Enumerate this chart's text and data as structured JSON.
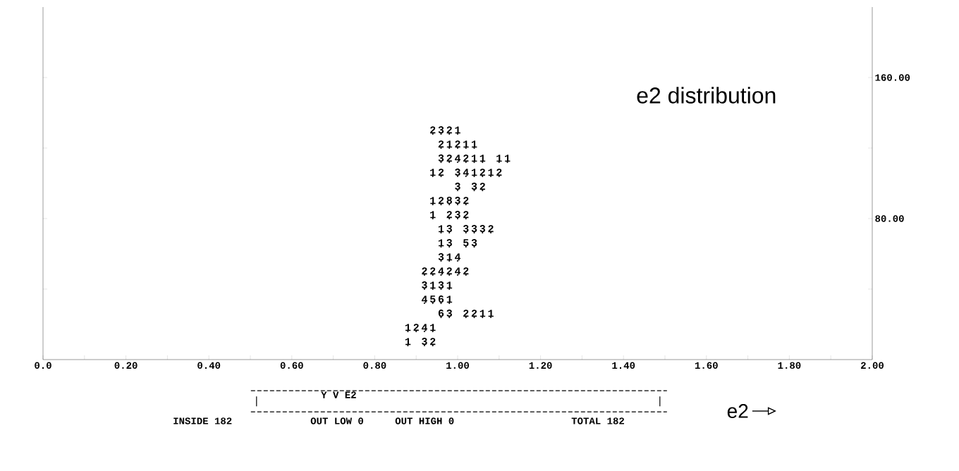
{
  "chart_data": {
    "type": "scatter",
    "title": "e2 distribution",
    "xlabel": "e2",
    "color": "#000000",
    "x": [
      0.94,
      0.96,
      0.98,
      1.0,
      0.96,
      0.98,
      1.0,
      1.02,
      1.04,
      0.96,
      0.98,
      1.0,
      1.02,
      1.04,
      1.06,
      1.1,
      1.12,
      0.94,
      0.96,
      1.0,
      1.02,
      1.04,
      1.06,
      1.08,
      1.1,
      1.0,
      1.04,
      1.06,
      0.94,
      0.96,
      0.98,
      1.0,
      1.02,
      0.94,
      0.98,
      1.0,
      1.02,
      0.96,
      0.98,
      1.02,
      1.04,
      1.06,
      1.08,
      0.96,
      0.98,
      1.02,
      1.04,
      0.96,
      0.98,
      1.0,
      0.92,
      0.94,
      0.96,
      0.98,
      1.0,
      1.02,
      0.92,
      0.94,
      0.96,
      0.98,
      0.92,
      0.94,
      0.96,
      0.98,
      0.96,
      0.98,
      1.02,
      1.04,
      1.06,
      1.08,
      0.88,
      0.9,
      0.92,
      0.94,
      0.88,
      0.92,
      0.94
    ],
    "values": [
      128,
      128,
      128,
      128,
      120,
      120,
      120,
      120,
      120,
      112,
      112,
      112,
      112,
      112,
      112,
      112,
      112,
      104,
      104,
      104,
      104,
      104,
      104,
      104,
      104,
      96,
      96,
      96,
      88,
      88,
      88,
      88,
      88,
      80,
      80,
      80,
      80,
      72,
      72,
      72,
      72,
      72,
      72,
      64,
      64,
      64,
      64,
      56,
      56,
      56,
      48,
      48,
      48,
      48,
      48,
      48,
      40,
      40,
      40,
      40,
      32,
      32,
      32,
      32,
      24,
      24,
      24,
      24,
      24,
      24,
      16,
      16,
      16,
      16,
      8,
      8,
      8
    ],
    "xlim": [
      0,
      2
    ],
    "ylim": [
      0,
      200
    ],
    "xticks": [
      {
        "value": 0,
        "label": "0.0"
      },
      {
        "value": 0.1,
        "label": null
      },
      {
        "value": 0.2,
        "label": "0.20"
      },
      {
        "value": 0.3,
        "label": null
      },
      {
        "value": 0.4,
        "label": "0.40"
      },
      {
        "value": 0.5,
        "label": null
      },
      {
        "value": 0.6,
        "label": "0.60"
      },
      {
        "value": 0.7,
        "label": null
      },
      {
        "value": 0.8,
        "label": "0.80"
      },
      {
        "value": 0.9,
        "label": null
      },
      {
        "value": 1.0,
        "label": "1.00"
      },
      {
        "value": 1.1,
        "label": null
      },
      {
        "value": 1.2,
        "label": "1.20"
      },
      {
        "value": 1.3,
        "label": null
      },
      {
        "value": 1.4,
        "label": "1.40"
      },
      {
        "value": 1.5,
        "label": null
      },
      {
        "value": 1.6,
        "label": "1.60"
      },
      {
        "value": 1.7,
        "label": null
      },
      {
        "value": 1.8,
        "label": "1.80"
      },
      {
        "value": 1.9,
        "label": null
      },
      {
        "value": 2.0,
        "label": "2.00"
      }
    ],
    "yticks": [
      {
        "value": 40,
        "label": null
      },
      {
        "value": 80,
        "label": "80.00"
      },
      {
        "value": 120,
        "label": null
      },
      {
        "value": 160,
        "label": "160.00"
      }
    ],
    "annotations": [
      "Y  V  E2",
      "INSIDE 182",
      "OUT LOW 0",
      "OUT HIGH 0",
      "TOTAL 182",
      {
        "text": "2",
        "x": 0.94,
        "y": 128
      },
      {
        "text": "3",
        "x": 0.96,
        "y": 128
      },
      {
        "text": "2",
        "x": 0.98,
        "y": 128
      },
      {
        "text": "1",
        "x": 1.0,
        "y": 128
      },
      {
        "text": "2",
        "x": 0.96,
        "y": 120
      },
      {
        "text": "1",
        "x": 0.98,
        "y": 120
      },
      {
        "text": "2",
        "x": 1.0,
        "y": 120
      },
      {
        "text": "1",
        "x": 1.02,
        "y": 120
      },
      {
        "text": "1",
        "x": 1.04,
        "y": 120
      },
      {
        "text": "3",
        "x": 0.96,
        "y": 112
      },
      {
        "text": "2",
        "x": 0.98,
        "y": 112
      },
      {
        "text": "4",
        "x": 1.0,
        "y": 112
      },
      {
        "text": "2",
        "x": 1.02,
        "y": 112
      },
      {
        "text": "1",
        "x": 1.04,
        "y": 112
      },
      {
        "text": "1",
        "x": 1.06,
        "y": 112
      },
      {
        "text": "1",
        "x": 1.1,
        "y": 112
      },
      {
        "text": "1",
        "x": 1.12,
        "y": 112
      },
      {
        "text": "1",
        "x": 0.94,
        "y": 104
      },
      {
        "text": "2",
        "x": 0.96,
        "y": 104
      },
      {
        "text": "3",
        "x": 1.0,
        "y": 104
      },
      {
        "text": "4",
        "x": 1.02,
        "y": 104
      },
      {
        "text": "1",
        "x": 1.04,
        "y": 104
      },
      {
        "text": "2",
        "x": 1.06,
        "y": 104
      },
      {
        "text": "1",
        "x": 1.08,
        "y": 104
      },
      {
        "text": "2",
        "x": 1.1,
        "y": 104
      },
      {
        "text": "3",
        "x": 1.0,
        "y": 96
      },
      {
        "text": "3",
        "x": 1.04,
        "y": 96
      },
      {
        "text": "2",
        "x": 1.06,
        "y": 96
      },
      {
        "text": "1",
        "x": 0.94,
        "y": 88
      },
      {
        "text": "2",
        "x": 0.96,
        "y": 88
      },
      {
        "text": "8",
        "x": 0.98,
        "y": 88
      },
      {
        "text": "3",
        "x": 1.0,
        "y": 88
      },
      {
        "text": "2",
        "x": 1.02,
        "y": 88
      },
      {
        "text": "1",
        "x": 0.94,
        "y": 80
      },
      {
        "text": "2",
        "x": 0.98,
        "y": 80
      },
      {
        "text": "3",
        "x": 1.0,
        "y": 80
      },
      {
        "text": "2",
        "x": 1.02,
        "y": 80
      },
      {
        "text": "1",
        "x": 0.96,
        "y": 72
      },
      {
        "text": "3",
        "x": 0.98,
        "y": 72
      },
      {
        "text": "3",
        "x": 1.02,
        "y": 72
      },
      {
        "text": "3",
        "x": 1.04,
        "y": 72
      },
      {
        "text": "3",
        "x": 1.06,
        "y": 72
      },
      {
        "text": "2",
        "x": 1.08,
        "y": 72
      },
      {
        "text": "1",
        "x": 0.96,
        "y": 64
      },
      {
        "text": "3",
        "x": 0.98,
        "y": 64
      },
      {
        "text": "5",
        "x": 1.02,
        "y": 64
      },
      {
        "text": "3",
        "x": 1.04,
        "y": 64
      },
      {
        "text": "3",
        "x": 0.96,
        "y": 56
      },
      {
        "text": "1",
        "x": 0.98,
        "y": 56
      },
      {
        "text": "4",
        "x": 1.0,
        "y": 56
      },
      {
        "text": "2",
        "x": 0.92,
        "y": 48
      },
      {
        "text": "2",
        "x": 0.94,
        "y": 48
      },
      {
        "text": "4",
        "x": 0.96,
        "y": 48
      },
      {
        "text": "2",
        "x": 0.98,
        "y": 48
      },
      {
        "text": "4",
        "x": 1.0,
        "y": 48
      },
      {
        "text": "2",
        "x": 1.02,
        "y": 48
      },
      {
        "text": "3",
        "x": 0.92,
        "y": 40
      },
      {
        "text": "1",
        "x": 0.94,
        "y": 40
      },
      {
        "text": "3",
        "x": 0.96,
        "y": 40
      },
      {
        "text": "1",
        "x": 0.98,
        "y": 40
      },
      {
        "text": "4",
        "x": 0.92,
        "y": 32
      },
      {
        "text": "5",
        "x": 0.94,
        "y": 32
      },
      {
        "text": "6",
        "x": 0.96,
        "y": 32
      },
      {
        "text": "1",
        "x": 0.98,
        "y": 32
      },
      {
        "text": "6",
        "x": 0.96,
        "y": 24
      },
      {
        "text": "3",
        "x": 0.98,
        "y": 24
      },
      {
        "text": "2",
        "x": 1.02,
        "y": 24
      },
      {
        "text": "2",
        "x": 1.04,
        "y": 24
      },
      {
        "text": "1",
        "x": 1.06,
        "y": 24
      },
      {
        "text": "1",
        "x": 1.08,
        "y": 24
      },
      {
        "text": "1",
        "x": 0.88,
        "y": 16
      },
      {
        "text": "2",
        "x": 0.9,
        "y": 16
      },
      {
        "text": "4",
        "x": 0.92,
        "y": 16
      },
      {
        "text": "1",
        "x": 0.94,
        "y": 16
      },
      {
        "text": "1",
        "x": 0.88,
        "y": 8
      },
      {
        "text": "3",
        "x": 0.92,
        "y": 8
      },
      {
        "text": "2",
        "x": 0.94,
        "y": 8
      }
    ]
  }
}
